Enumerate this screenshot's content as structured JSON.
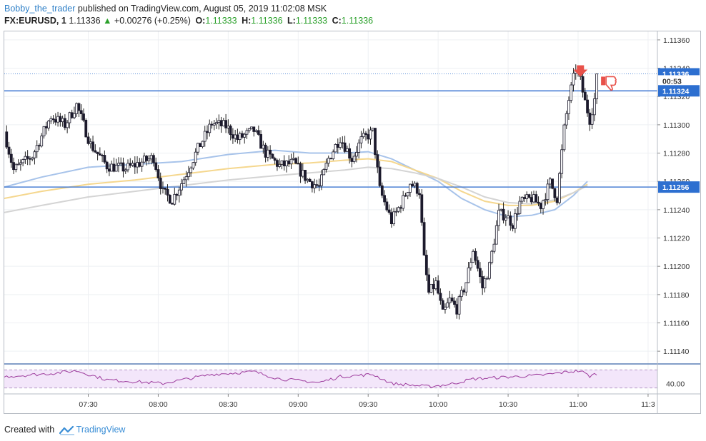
{
  "header": {
    "author": "Bobby_the_trader",
    "published_text": "published on TradingView.com, August 05, 2019 11:02:08 MSK",
    "symbol": "FX:EURUSD, 1",
    "last_price": "1.11336",
    "change_arrow": "▲",
    "change": "+0.00276 (+0.25%)",
    "ohlc": [
      {
        "label": "O:",
        "value": "1.11333"
      },
      {
        "label": "H:",
        "value": "1.11336"
      },
      {
        "label": "L:",
        "value": "1.11333"
      },
      {
        "label": "C:",
        "value": "1.11336"
      }
    ]
  },
  "footer": {
    "created_with": "Created with",
    "brand": "TradingView"
  },
  "colors": {
    "bull_wick": "#222222",
    "body_dark": "#1c1a2c",
    "body_light": "#ffffff",
    "hline_blue": "#4a7fd4",
    "price_label_bg": "#2d6fd0",
    "ma_blue": "#a7c3ea",
    "ma_orange": "#f5d78e",
    "ma_gray": "#d4d4d4",
    "rsi_line": "#9c3a9c",
    "rsi_fill": "#f3e6fa",
    "marker_red": "#e8514a"
  },
  "chart_data": {
    "type": "candlestick",
    "symbol": "FX:EURUSD",
    "interval": "1",
    "x_tick_labels": [
      "07:30",
      "08:00",
      "08:30",
      "09:00",
      "09:30",
      "10:00",
      "10:30",
      "11:00",
      "11:3"
    ],
    "x_ticks_minutes": [
      450,
      480,
      510,
      540,
      570,
      600,
      630,
      660,
      690
    ],
    "x_range_minutes": [
      414,
      694
    ],
    "y_tick_labels": [
      "1.11360",
      "1.11340",
      "1.11320",
      "1.11300",
      "1.11280",
      "1.11260",
      "1.11240",
      "1.11220",
      "1.11200",
      "1.11180",
      "1.11160",
      "1.11140"
    ],
    "y_range": [
      1.11131,
      1.11366
    ],
    "grid": true,
    "horizontal_lines": [
      1.11324,
      1.11256
    ],
    "price_labels": [
      {
        "text": "1.11336",
        "value": 1.11336,
        "dotted": true
      },
      {
        "text": "00:53",
        "value": 1.11331,
        "countdown": true
      },
      {
        "text": "1.11324",
        "value": 1.11324
      },
      {
        "text": "1.11256",
        "value": 1.11256
      }
    ],
    "price_anchors": [
      {
        "t": 414,
        "p": 1.11295
      },
      {
        "t": 418,
        "p": 1.11268
      },
      {
        "t": 426,
        "p": 1.11278
      },
      {
        "t": 434,
        "p": 1.11306
      },
      {
        "t": 440,
        "p": 1.113
      },
      {
        "t": 445,
        "p": 1.11314
      },
      {
        "t": 451,
        "p": 1.11286
      },
      {
        "t": 458,
        "p": 1.11271
      },
      {
        "t": 466,
        "p": 1.11269
      },
      {
        "t": 478,
        "p": 1.11277
      },
      {
        "t": 482,
        "p": 1.11252
      },
      {
        "t": 486,
        "p": 1.11247
      },
      {
        "t": 491,
        "p": 1.11262
      },
      {
        "t": 497,
        "p": 1.11283
      },
      {
        "t": 503,
        "p": 1.11301
      },
      {
        "t": 509,
        "p": 1.11299
      },
      {
        "t": 514,
        "p": 1.1129
      },
      {
        "t": 521,
        "p": 1.11296
      },
      {
        "t": 526,
        "p": 1.1128
      },
      {
        "t": 532,
        "p": 1.11271
      },
      {
        "t": 538,
        "p": 1.11273
      },
      {
        "t": 544,
        "p": 1.11261
      },
      {
        "t": 549,
        "p": 1.11256
      },
      {
        "t": 553,
        "p": 1.11276
      },
      {
        "t": 558,
        "p": 1.11291
      },
      {
        "t": 563,
        "p": 1.11276
      },
      {
        "t": 567,
        "p": 1.11289
      },
      {
        "t": 572,
        "p": 1.11295
      },
      {
        "t": 575,
        "p": 1.11254
      },
      {
        "t": 580,
        "p": 1.11232
      },
      {
        "t": 585,
        "p": 1.11247
      },
      {
        "t": 588,
        "p": 1.11259
      },
      {
        "t": 592,
        "p": 1.11253
      },
      {
        "t": 594,
        "p": 1.11205
      },
      {
        "t": 596,
        "p": 1.11181
      },
      {
        "t": 599,
        "p": 1.11188
      },
      {
        "t": 602,
        "p": 1.11166
      },
      {
        "t": 605,
        "p": 1.11176
      },
      {
        "t": 608,
        "p": 1.1117
      },
      {
        "t": 612,
        "p": 1.11189
      },
      {
        "t": 615,
        "p": 1.11212
      },
      {
        "t": 619,
        "p": 1.11185
      },
      {
        "t": 622,
        "p": 1.112
      },
      {
        "t": 626,
        "p": 1.11237
      },
      {
        "t": 629,
        "p": 1.11236
      },
      {
        "t": 632,
        "p": 1.1123
      },
      {
        "t": 635,
        "p": 1.11245
      },
      {
        "t": 640,
        "p": 1.11248
      },
      {
        "t": 644,
        "p": 1.11243
      },
      {
        "t": 648,
        "p": 1.11259
      },
      {
        "t": 651,
        "p": 1.11248
      },
      {
        "t": 654,
        "p": 1.11297
      },
      {
        "t": 656,
        "p": 1.11318
      },
      {
        "t": 659,
        "p": 1.1134
      },
      {
        "t": 661,
        "p": 1.11331
      },
      {
        "t": 663,
        "p": 1.11316
      },
      {
        "t": 665,
        "p": 1.11304
      },
      {
        "t": 667,
        "p": 1.11318
      },
      {
        "t": 668,
        "p": 1.11336
      }
    ],
    "moving_averages": [
      {
        "key": "ma_blue",
        "points": [
          {
            "t": 414,
            "p": 1.11256
          },
          {
            "t": 430,
            "p": 1.11263
          },
          {
            "t": 450,
            "p": 1.1127
          },
          {
            "t": 470,
            "p": 1.11272
          },
          {
            "t": 490,
            "p": 1.11274
          },
          {
            "t": 510,
            "p": 1.11279
          },
          {
            "t": 530,
            "p": 1.11282
          },
          {
            "t": 545,
            "p": 1.1128
          },
          {
            "t": 560,
            "p": 1.1128
          },
          {
            "t": 570,
            "p": 1.11281
          },
          {
            "t": 580,
            "p": 1.11276
          },
          {
            "t": 590,
            "p": 1.11268
          },
          {
            "t": 600,
            "p": 1.1126
          },
          {
            "t": 610,
            "p": 1.11248
          },
          {
            "t": 620,
            "p": 1.1124
          },
          {
            "t": 630,
            "p": 1.11235
          },
          {
            "t": 640,
            "p": 1.11236
          },
          {
            "t": 650,
            "p": 1.1124
          },
          {
            "t": 658,
            "p": 1.1125
          },
          {
            "t": 664,
            "p": 1.1126
          }
        ]
      },
      {
        "key": "ma_orange",
        "points": [
          {
            "t": 414,
            "p": 1.11248
          },
          {
            "t": 430,
            "p": 1.11253
          },
          {
            "t": 450,
            "p": 1.11258
          },
          {
            "t": 470,
            "p": 1.11261
          },
          {
            "t": 490,
            "p": 1.11265
          },
          {
            "t": 510,
            "p": 1.11269
          },
          {
            "t": 530,
            "p": 1.11272
          },
          {
            "t": 545,
            "p": 1.11273
          },
          {
            "t": 560,
            "p": 1.11275
          },
          {
            "t": 570,
            "p": 1.11276
          },
          {
            "t": 580,
            "p": 1.11274
          },
          {
            "t": 590,
            "p": 1.11268
          },
          {
            "t": 600,
            "p": 1.11262
          },
          {
            "t": 610,
            "p": 1.11253
          },
          {
            "t": 620,
            "p": 1.11246
          },
          {
            "t": 630,
            "p": 1.11243
          },
          {
            "t": 640,
            "p": 1.11243
          },
          {
            "t": 650,
            "p": 1.11246
          },
          {
            "t": 658,
            "p": 1.11252
          },
          {
            "t": 664,
            "p": 1.11258
          }
        ]
      },
      {
        "key": "ma_gray",
        "points": [
          {
            "t": 414,
            "p": 1.11238
          },
          {
            "t": 430,
            "p": 1.11243
          },
          {
            "t": 450,
            "p": 1.11249
          },
          {
            "t": 470,
            "p": 1.11253
          },
          {
            "t": 490,
            "p": 1.11257
          },
          {
            "t": 510,
            "p": 1.11261
          },
          {
            "t": 530,
            "p": 1.11264
          },
          {
            "t": 545,
            "p": 1.11266
          },
          {
            "t": 560,
            "p": 1.11268
          },
          {
            "t": 570,
            "p": 1.1127
          },
          {
            "t": 580,
            "p": 1.11269
          },
          {
            "t": 590,
            "p": 1.11266
          },
          {
            "t": 600,
            "p": 1.11262
          },
          {
            "t": 610,
            "p": 1.11256
          },
          {
            "t": 620,
            "p": 1.11249
          },
          {
            "t": 630,
            "p": 1.11245
          },
          {
            "t": 640,
            "p": 1.11244
          },
          {
            "t": 650,
            "p": 1.11247
          },
          {
            "t": 658,
            "p": 1.11252
          },
          {
            "t": 664,
            "p": 1.11257
          }
        ]
      }
    ],
    "rsi": {
      "label": "40.00",
      "level": 40,
      "anchors": [
        {
          "t": 414,
          "v": 55
        },
        {
          "t": 434,
          "v": 62
        },
        {
          "t": 445,
          "v": 68
        },
        {
          "t": 458,
          "v": 48
        },
        {
          "t": 482,
          "v": 40
        },
        {
          "t": 503,
          "v": 60
        },
        {
          "t": 521,
          "v": 66
        },
        {
          "t": 532,
          "v": 50
        },
        {
          "t": 549,
          "v": 42
        },
        {
          "t": 558,
          "v": 55
        },
        {
          "t": 572,
          "v": 60
        },
        {
          "t": 580,
          "v": 40
        },
        {
          "t": 596,
          "v": 33
        },
        {
          "t": 605,
          "v": 38
        },
        {
          "t": 615,
          "v": 50
        },
        {
          "t": 629,
          "v": 54
        },
        {
          "t": 644,
          "v": 58
        },
        {
          "t": 656,
          "v": 66
        },
        {
          "t": 661,
          "v": 68
        },
        {
          "t": 665,
          "v": 56
        },
        {
          "t": 668,
          "v": 62
        }
      ]
    },
    "markers": [
      {
        "type": "down-arrow",
        "t": 661,
        "p": 1.11336
      },
      {
        "type": "thumbs-down",
        "t": 668,
        "p": 1.11331
      }
    ]
  }
}
